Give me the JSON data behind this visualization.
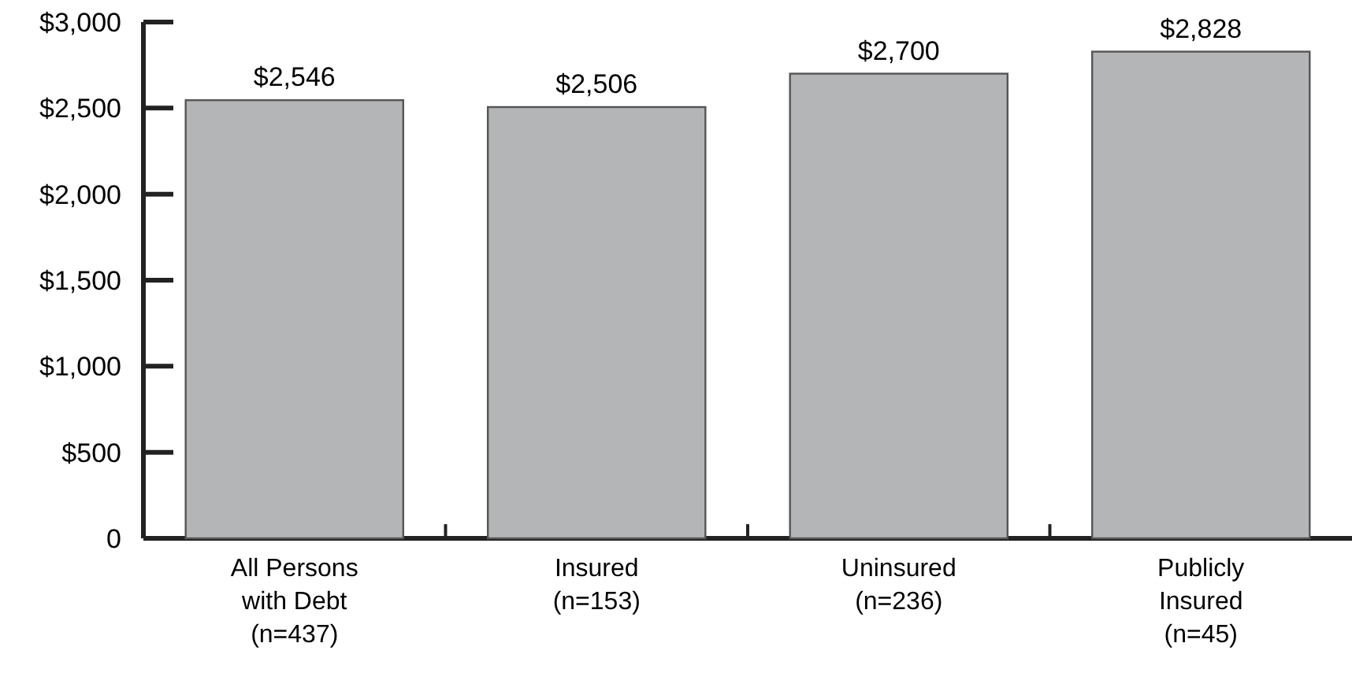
{
  "chart_data": {
    "type": "bar",
    "categories": [
      "All Persons\nwith Debt\n(n=437)",
      "Insured\n(n=153)",
      "Uninsured\n(n=236)",
      "Publicly\nInsured\n(n=45)"
    ],
    "values": [
      2546,
      2506,
      2700,
      2828
    ],
    "value_labels": [
      "$2,546",
      "$2,506",
      "$2,700",
      "$2,828"
    ],
    "color": "#b4b5b7",
    "ylim": [
      0,
      3000
    ],
    "yticks": [
      {
        "value": 0,
        "label": "0"
      },
      {
        "value": 500,
        "label": "$500"
      },
      {
        "value": 1000,
        "label": "$1,000"
      },
      {
        "value": 1500,
        "label": "$1,500"
      },
      {
        "value": 2000,
        "label": "$2,000"
      },
      {
        "value": 2500,
        "label": "$2,500"
      },
      {
        "value": 3000,
        "label": "$3,000"
      }
    ],
    "grid": false
  }
}
